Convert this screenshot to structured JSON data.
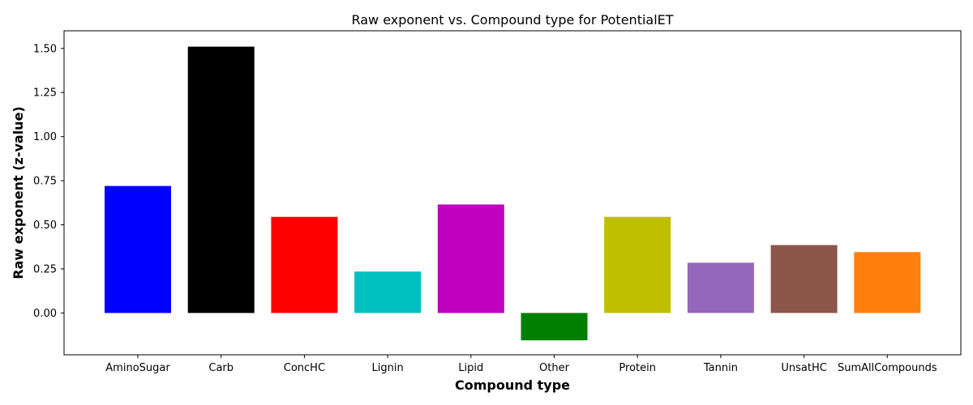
{
  "chart_data": {
    "type": "bar",
    "title": "Raw exponent vs. Compound type for PotentialET",
    "xlabel": "Compound type",
    "ylabel": "Raw exponent (z-value)",
    "categories": [
      "AminoSugar",
      "Carb",
      "ConcHC",
      "Lignin",
      "Lipid",
      "Other",
      "Protein",
      "Tannin",
      "UnsatHC",
      "SumAllCompounds"
    ],
    "values": [
      0.72,
      1.51,
      0.545,
      0.235,
      0.615,
      -0.155,
      0.545,
      0.285,
      0.385,
      0.345
    ],
    "colors": [
      "#0000ff",
      "#000000",
      "#ff0000",
      "#00bfbf",
      "#bf00bf",
      "#008000",
      "#bfbf00",
      "#9467bd",
      "#8c564b",
      "#ff7f0e"
    ],
    "ylim": [
      -0.237,
      1.6
    ],
    "yticks": [
      0.0,
      0.25,
      0.5,
      0.75,
      1.0,
      1.25,
      1.5
    ],
    "ytick_labels": [
      "0.00",
      "0.25",
      "0.50",
      "0.75",
      "1.00",
      "1.25",
      "1.50"
    ],
    "grid": false,
    "legend": "none"
  }
}
